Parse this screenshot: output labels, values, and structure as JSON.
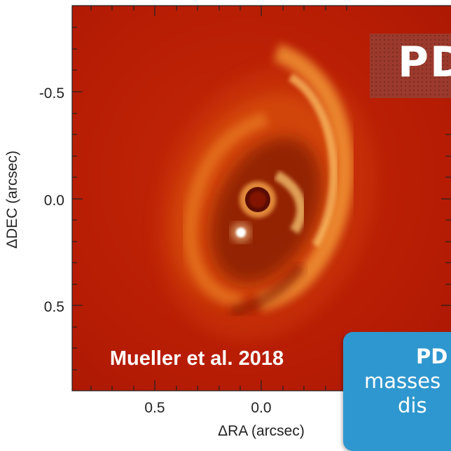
{
  "figure": {
    "citation": "Mueller et al. 2018",
    "x_axis_label": "ΔRA (arcsec)",
    "y_axis_label": "ΔDEC (arcsec)",
    "x_ticks": [
      "0.5",
      "0.0"
    ],
    "y_ticks": [
      "-0.5",
      "0.0",
      "0.5"
    ]
  },
  "slide_title": {
    "text": "PD"
  },
  "callout": {
    "line1": "PD",
    "line2": "masses",
    "line3": "dis",
    "line4": ""
  },
  "colors": {
    "background": "#b91e06",
    "title_box": "#9b3a2c",
    "callout": "#2f97cf"
  }
}
